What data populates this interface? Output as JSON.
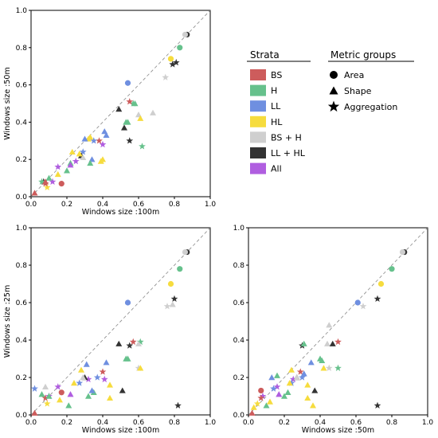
{
  "colors": {
    "BS": "#cd5c5c",
    "H": "#66c18c",
    "LL": "#6f8fe0",
    "HL": "#f6dc3e",
    "BS + H": "#cfcfcf",
    "LL + HL": "#333333",
    "All": "#b05ee0"
  },
  "legend": {
    "strata_title": "Strata",
    "strata": [
      "BS",
      "H",
      "LL",
      "HL",
      "BS + H",
      "LL + HL",
      "All"
    ],
    "metric_title": "Metric groups",
    "metric_groups": [
      {
        "label": "Area",
        "marker": "circle"
      },
      {
        "label": "Shape",
        "marker": "triangle"
      },
      {
        "label": "Aggregation",
        "marker": "star"
      }
    ]
  },
  "chart_data": [
    {
      "type": "scatter",
      "xlabel": "Windows size :100m",
      "ylabel": "Windows size :50m",
      "xlim": [
        0,
        1
      ],
      "ylim": [
        0,
        1
      ],
      "xticks": [
        "0.0",
        "0.2",
        "0.4",
        "0.6",
        "0.8",
        "1.0"
      ],
      "yticks": [
        "0.0",
        "0.2",
        "0.4",
        "0.6",
        "0.8",
        "1.0"
      ],
      "diagonal": true,
      "points": [
        {
          "x": 0.87,
          "y": 0.87,
          "s": "LL + HL",
          "m": "circle"
        },
        {
          "x": 0.86,
          "y": 0.87,
          "s": "BS + H",
          "m": "circle"
        },
        {
          "x": 0.83,
          "y": 0.8,
          "s": "H",
          "m": "circle"
        },
        {
          "x": 0.54,
          "y": 0.61,
          "s": "LL",
          "m": "circle"
        },
        {
          "x": 0.78,
          "y": 0.74,
          "s": "HL",
          "m": "circle"
        },
        {
          "x": 0.17,
          "y": 0.07,
          "s": "BS",
          "m": "circle"
        },
        {
          "x": 0.81,
          "y": 0.72,
          "s": "LL + HL",
          "m": "star"
        },
        {
          "x": 0.79,
          "y": 0.71,
          "s": "LL + HL",
          "m": "star"
        },
        {
          "x": 0.75,
          "y": 0.64,
          "s": "BS + H",
          "m": "star"
        },
        {
          "x": 0.55,
          "y": 0.3,
          "s": "LL + HL",
          "m": "star"
        },
        {
          "x": 0.62,
          "y": 0.27,
          "s": "H",
          "m": "star"
        },
        {
          "x": 0.57,
          "y": 0.5,
          "s": "H",
          "m": "star"
        },
        {
          "x": 0.55,
          "y": 0.51,
          "s": "BS",
          "m": "star"
        },
        {
          "x": 0.4,
          "y": 0.28,
          "s": "All",
          "m": "star"
        },
        {
          "x": 0.38,
          "y": 0.3,
          "s": "BS",
          "m": "star"
        },
        {
          "x": 0.35,
          "y": 0.3,
          "s": "LL",
          "m": "star"
        },
        {
          "x": 0.29,
          "y": 0.24,
          "s": "LL",
          "m": "star"
        },
        {
          "x": 0.25,
          "y": 0.19,
          "s": "All",
          "m": "star"
        },
        {
          "x": 0.15,
          "y": 0.16,
          "s": "All",
          "m": "star"
        },
        {
          "x": 0.12,
          "y": 0.08,
          "s": "All",
          "m": "star"
        },
        {
          "x": 0.09,
          "y": 0.05,
          "s": "HL",
          "m": "star"
        },
        {
          "x": 0.08,
          "y": 0.07,
          "s": "BS",
          "m": "star"
        },
        {
          "x": 0.07,
          "y": 0.08,
          "s": "LL + HL",
          "m": "star"
        },
        {
          "x": 0.06,
          "y": 0.08,
          "s": "H",
          "m": "star"
        },
        {
          "x": 0.02,
          "y": 0.02,
          "s": "BS",
          "m": "triangle"
        },
        {
          "x": 0.68,
          "y": 0.45,
          "s": "BS + H",
          "m": "triangle"
        },
        {
          "x": 0.6,
          "y": 0.44,
          "s": "BS + H",
          "m": "triangle"
        },
        {
          "x": 0.61,
          "y": 0.42,
          "s": "HL",
          "m": "triangle"
        },
        {
          "x": 0.49,
          "y": 0.47,
          "s": "LL + HL",
          "m": "triangle"
        },
        {
          "x": 0.52,
          "y": 0.37,
          "s": "LL + HL",
          "m": "triangle"
        },
        {
          "x": 0.53,
          "y": 0.4,
          "s": "H",
          "m": "triangle"
        },
        {
          "x": 0.54,
          "y": 0.4,
          "s": "H",
          "m": "triangle"
        },
        {
          "x": 0.58,
          "y": 0.5,
          "s": "H",
          "m": "triangle"
        },
        {
          "x": 0.41,
          "y": 0.35,
          "s": "LL",
          "m": "triangle"
        },
        {
          "x": 0.42,
          "y": 0.33,
          "s": "LL",
          "m": "triangle"
        },
        {
          "x": 0.4,
          "y": 0.2,
          "s": "HL",
          "m": "triangle"
        },
        {
          "x": 0.39,
          "y": 0.19,
          "s": "HL",
          "m": "triangle"
        },
        {
          "x": 0.32,
          "y": 0.31,
          "s": "HL",
          "m": "triangle"
        },
        {
          "x": 0.33,
          "y": 0.32,
          "s": "HL",
          "m": "triangle"
        },
        {
          "x": 0.34,
          "y": 0.2,
          "s": "LL",
          "m": "triangle"
        },
        {
          "x": 0.33,
          "y": 0.18,
          "s": "H",
          "m": "triangle"
        },
        {
          "x": 0.3,
          "y": 0.31,
          "s": "LL",
          "m": "triangle"
        },
        {
          "x": 0.28,
          "y": 0.22,
          "s": "LL + HL",
          "m": "triangle"
        },
        {
          "x": 0.29,
          "y": 0.21,
          "s": "BS + H",
          "m": "triangle"
        },
        {
          "x": 0.27,
          "y": 0.23,
          "s": "HL",
          "m": "triangle"
        },
        {
          "x": 0.23,
          "y": 0.24,
          "s": "HL",
          "m": "triangle"
        },
        {
          "x": 0.22,
          "y": 0.18,
          "s": "H",
          "m": "triangle"
        },
        {
          "x": 0.22,
          "y": 0.17,
          "s": "All",
          "m": "triangle"
        },
        {
          "x": 0.2,
          "y": 0.14,
          "s": "H",
          "m": "triangle"
        },
        {
          "x": 0.15,
          "y": 0.12,
          "s": "HL",
          "m": "triangle"
        },
        {
          "x": 0.1,
          "y": 0.1,
          "s": "H",
          "m": "triangle"
        },
        {
          "x": 0.08,
          "y": 0.08,
          "s": "BS",
          "m": "triangle"
        }
      ]
    },
    {
      "type": "scatter",
      "xlabel": "Windows size :100m",
      "ylabel": "Windows size :25m",
      "xlim": [
        0,
        1
      ],
      "ylim": [
        0,
        1
      ],
      "xticks": [
        "0.0",
        "0.2",
        "0.4",
        "0.6",
        "0.8",
        "1.0"
      ],
      "yticks": [
        "0.0",
        "0.2",
        "0.4",
        "0.6",
        "0.8",
        "1.0"
      ],
      "diagonal": true,
      "points": [
        {
          "x": 0.87,
          "y": 0.87,
          "s": "LL + HL",
          "m": "circle"
        },
        {
          "x": 0.86,
          "y": 0.87,
          "s": "BS + H",
          "m": "circle"
        },
        {
          "x": 0.83,
          "y": 0.78,
          "s": "H",
          "m": "circle"
        },
        {
          "x": 0.78,
          "y": 0.7,
          "s": "HL",
          "m": "circle"
        },
        {
          "x": 0.54,
          "y": 0.6,
          "s": "LL",
          "m": "circle"
        },
        {
          "x": 0.17,
          "y": 0.12,
          "s": "BS",
          "m": "circle"
        },
        {
          "x": 0.8,
          "y": 0.62,
          "s": "LL + HL",
          "m": "star"
        },
        {
          "x": 0.76,
          "y": 0.58,
          "s": "BS + H",
          "m": "star"
        },
        {
          "x": 0.82,
          "y": 0.05,
          "s": "LL + HL",
          "m": "star"
        },
        {
          "x": 0.57,
          "y": 0.39,
          "s": "BS",
          "m": "star"
        },
        {
          "x": 0.61,
          "y": 0.39,
          "s": "H",
          "m": "star"
        },
        {
          "x": 0.6,
          "y": 0.25,
          "s": "BS + H",
          "m": "star"
        },
        {
          "x": 0.55,
          "y": 0.37,
          "s": "LL + HL",
          "m": "star"
        },
        {
          "x": 0.4,
          "y": 0.23,
          "s": "BS",
          "m": "star"
        },
        {
          "x": 0.37,
          "y": 0.2,
          "s": "LL",
          "m": "star"
        },
        {
          "x": 0.41,
          "y": 0.19,
          "s": "All",
          "m": "star"
        },
        {
          "x": 0.32,
          "y": 0.19,
          "s": "All",
          "m": "star"
        },
        {
          "x": 0.27,
          "y": 0.17,
          "s": "LL",
          "m": "star"
        },
        {
          "x": 0.15,
          "y": 0.15,
          "s": "All",
          "m": "star"
        },
        {
          "x": 0.1,
          "y": 0.1,
          "s": "All",
          "m": "star"
        },
        {
          "x": 0.09,
          "y": 0.06,
          "s": "HL",
          "m": "star"
        },
        {
          "x": 0.02,
          "y": 0.14,
          "s": "LL",
          "m": "star"
        },
        {
          "x": 0.08,
          "y": 0.09,
          "s": "BS",
          "m": "star"
        },
        {
          "x": 0.02,
          "y": 0.01,
          "s": "BS",
          "m": "triangle"
        },
        {
          "x": 0.79,
          "y": 0.59,
          "s": "BS + H",
          "m": "triangle"
        },
        {
          "x": 0.6,
          "y": 0.38,
          "s": "BS + H",
          "m": "triangle"
        },
        {
          "x": 0.61,
          "y": 0.25,
          "s": "HL",
          "m": "triangle"
        },
        {
          "x": 0.49,
          "y": 0.38,
          "s": "LL + HL",
          "m": "triangle"
        },
        {
          "x": 0.51,
          "y": 0.13,
          "s": "LL + HL",
          "m": "triangle"
        },
        {
          "x": 0.53,
          "y": 0.3,
          "s": "H",
          "m": "triangle"
        },
        {
          "x": 0.54,
          "y": 0.3,
          "s": "H",
          "m": "triangle"
        },
        {
          "x": 0.44,
          "y": 0.16,
          "s": "HL",
          "m": "triangle"
        },
        {
          "x": 0.44,
          "y": 0.09,
          "s": "HL",
          "m": "triangle"
        },
        {
          "x": 0.42,
          "y": 0.28,
          "s": "LL",
          "m": "triangle"
        },
        {
          "x": 0.35,
          "y": 0.12,
          "s": "H",
          "m": "triangle"
        },
        {
          "x": 0.32,
          "y": 0.1,
          "s": "H",
          "m": "triangle"
        },
        {
          "x": 0.34,
          "y": 0.13,
          "s": "LL",
          "m": "triangle"
        },
        {
          "x": 0.31,
          "y": 0.27,
          "s": "LL",
          "m": "triangle"
        },
        {
          "x": 0.3,
          "y": 0.2,
          "s": "LL + HL",
          "m": "triangle"
        },
        {
          "x": 0.29,
          "y": 0.2,
          "s": "BS + H",
          "m": "triangle"
        },
        {
          "x": 0.28,
          "y": 0.24,
          "s": "HL",
          "m": "triangle"
        },
        {
          "x": 0.24,
          "y": 0.17,
          "s": "HL",
          "m": "triangle"
        },
        {
          "x": 0.22,
          "y": 0.11,
          "s": "All",
          "m": "triangle"
        },
        {
          "x": 0.21,
          "y": 0.05,
          "s": "H",
          "m": "triangle"
        },
        {
          "x": 0.16,
          "y": 0.08,
          "s": "HL",
          "m": "triangle"
        },
        {
          "x": 0.1,
          "y": 0.1,
          "s": "H",
          "m": "triangle"
        },
        {
          "x": 0.08,
          "y": 0.15,
          "s": "BS + H",
          "m": "triangle"
        },
        {
          "x": 0.06,
          "y": 0.11,
          "s": "H",
          "m": "triangle"
        }
      ]
    },
    {
      "type": "scatter",
      "xlabel": "Windows size :50m",
      "ylabel": "",
      "xlim": [
        0,
        1
      ],
      "ylim": [
        0,
        1
      ],
      "xticks": [
        "0.0",
        "0.2",
        "0.4",
        "0.6",
        "0.8",
        "1.0"
      ],
      "yticks": [
        "0.0",
        "0.2",
        "0.4",
        "0.6",
        "0.8",
        "1.0"
      ],
      "diagonal": true,
      "points": [
        {
          "x": 0.87,
          "y": 0.87,
          "s": "LL + HL",
          "m": "circle"
        },
        {
          "x": 0.86,
          "y": 0.87,
          "s": "BS + H",
          "m": "circle"
        },
        {
          "x": 0.8,
          "y": 0.78,
          "s": "H",
          "m": "circle"
        },
        {
          "x": 0.74,
          "y": 0.7,
          "s": "HL",
          "m": "circle"
        },
        {
          "x": 0.61,
          "y": 0.6,
          "s": "LL",
          "m": "circle"
        },
        {
          "x": 0.07,
          "y": 0.13,
          "s": "BS",
          "m": "circle"
        },
        {
          "x": 0.72,
          "y": 0.62,
          "s": "LL + HL",
          "m": "star"
        },
        {
          "x": 0.64,
          "y": 0.58,
          "s": "BS + H",
          "m": "star"
        },
        {
          "x": 0.72,
          "y": 0.05,
          "s": "LL + HL",
          "m": "star"
        },
        {
          "x": 0.5,
          "y": 0.39,
          "s": "BS",
          "m": "star"
        },
        {
          "x": 0.5,
          "y": 0.25,
          "s": "H",
          "m": "star"
        },
        {
          "x": 0.45,
          "y": 0.25,
          "s": "BS + H",
          "m": "star"
        },
        {
          "x": 0.3,
          "y": 0.37,
          "s": "LL + HL",
          "m": "star"
        },
        {
          "x": 0.29,
          "y": 0.23,
          "s": "BS",
          "m": "star"
        },
        {
          "x": 0.3,
          "y": 0.2,
          "s": "LL",
          "m": "star"
        },
        {
          "x": 0.25,
          "y": 0.19,
          "s": "All",
          "m": "star"
        },
        {
          "x": 0.24,
          "y": 0.17,
          "s": "LL",
          "m": "star"
        },
        {
          "x": 0.16,
          "y": 0.15,
          "s": "All",
          "m": "star"
        },
        {
          "x": 0.08,
          "y": 0.1,
          "s": "All",
          "m": "star"
        },
        {
          "x": 0.05,
          "y": 0.06,
          "s": "HL",
          "m": "star"
        },
        {
          "x": 0.14,
          "y": 0.14,
          "s": "LL",
          "m": "star"
        },
        {
          "x": 0.07,
          "y": 0.09,
          "s": "BS",
          "m": "star"
        },
        {
          "x": 0.02,
          "y": 0.01,
          "s": "BS",
          "m": "triangle"
        },
        {
          "x": 0.45,
          "y": 0.48,
          "s": "BS + H",
          "m": "triangle"
        },
        {
          "x": 0.44,
          "y": 0.38,
          "s": "BS + H",
          "m": "triangle"
        },
        {
          "x": 0.42,
          "y": 0.25,
          "s": "HL",
          "m": "triangle"
        },
        {
          "x": 0.47,
          "y": 0.38,
          "s": "LL + HL",
          "m": "triangle"
        },
        {
          "x": 0.37,
          "y": 0.13,
          "s": "LL + HL",
          "m": "triangle"
        },
        {
          "x": 0.4,
          "y": 0.3,
          "s": "H",
          "m": "triangle"
        },
        {
          "x": 0.41,
          "y": 0.29,
          "s": "H",
          "m": "triangle"
        },
        {
          "x": 0.31,
          "y": 0.38,
          "s": "H",
          "m": "triangle"
        },
        {
          "x": 0.33,
          "y": 0.16,
          "s": "HL",
          "m": "triangle"
        },
        {
          "x": 0.33,
          "y": 0.09,
          "s": "HL",
          "m": "triangle"
        },
        {
          "x": 0.35,
          "y": 0.28,
          "s": "LL",
          "m": "triangle"
        },
        {
          "x": 0.22,
          "y": 0.12,
          "s": "H",
          "m": "triangle"
        },
        {
          "x": 0.2,
          "y": 0.1,
          "s": "H",
          "m": "triangle"
        },
        {
          "x": 0.31,
          "y": 0.22,
          "s": "LL",
          "m": "triangle"
        },
        {
          "x": 0.27,
          "y": 0.2,
          "s": "LL + HL",
          "m": "triangle"
        },
        {
          "x": 0.27,
          "y": 0.2,
          "s": "BS + H",
          "m": "triangle"
        },
        {
          "x": 0.24,
          "y": 0.24,
          "s": "HL",
          "m": "triangle"
        },
        {
          "x": 0.23,
          "y": 0.17,
          "s": "HL",
          "m": "triangle"
        },
        {
          "x": 0.17,
          "y": 0.11,
          "s": "All",
          "m": "triangle"
        },
        {
          "x": 0.1,
          "y": 0.05,
          "s": "H",
          "m": "triangle"
        },
        {
          "x": 0.12,
          "y": 0.07,
          "s": "HL",
          "m": "triangle"
        },
        {
          "x": 0.13,
          "y": 0.2,
          "s": "LL",
          "m": "triangle"
        },
        {
          "x": 0.16,
          "y": 0.21,
          "s": "H",
          "m": "triangle"
        },
        {
          "x": 0.36,
          "y": 0.05,
          "s": "HL",
          "m": "triangle"
        },
        {
          "x": 0.03,
          "y": 0.04,
          "s": "HL",
          "m": "triangle"
        }
      ]
    }
  ]
}
